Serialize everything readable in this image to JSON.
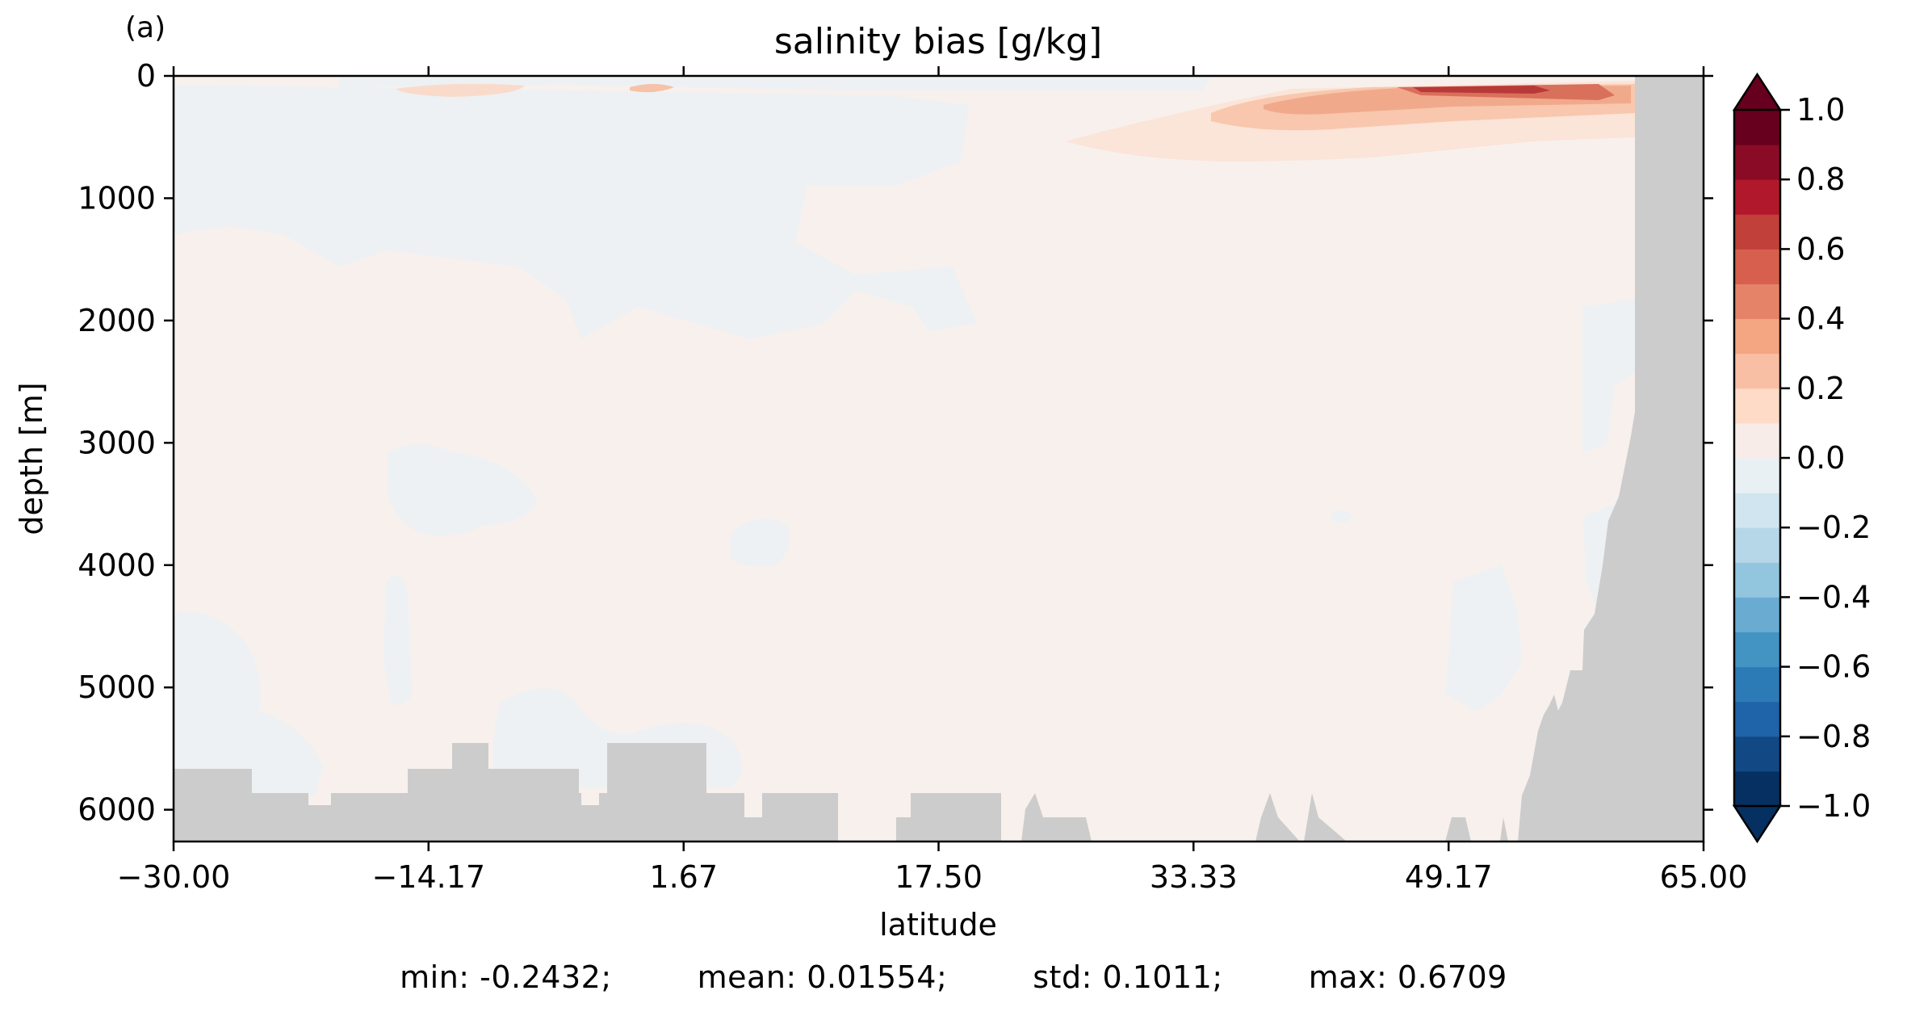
{
  "chart_data": {
    "type": "heatmap",
    "panel_label": "(a)",
    "title": "salinity bias [g/kg]",
    "xlabel": "latitude",
    "ylabel": "depth [m]",
    "xlim": [
      -30.0,
      65.0
    ],
    "ylim": [
      6260,
      0
    ],
    "y_inverted": true,
    "x_ticks": [
      -30.0,
      -14.17,
      1.67,
      17.5,
      33.33,
      49.17,
      65.0
    ],
    "x_tick_labels": [
      "−30.00",
      "−14.17",
      "1.67",
      "17.50",
      "33.33",
      "49.17",
      "65.00"
    ],
    "y_ticks": [
      0,
      1000,
      2000,
      3000,
      4000,
      5000,
      6000
    ],
    "y_tick_labels": [
      "0",
      "1000",
      "2000",
      "3000",
      "4000",
      "5000",
      "6000"
    ],
    "colormap": "RdBu_r",
    "colorbar": {
      "min": -1.0,
      "max": 1.0,
      "extend": "both",
      "ticks": [
        1.0,
        0.8,
        0.6,
        0.4,
        0.2,
        0.0,
        -0.2,
        -0.4,
        -0.6,
        -0.8,
        -1.0
      ],
      "tick_labels": [
        "1.0",
        "0.8",
        "0.6",
        "0.4",
        "0.2",
        "0.0",
        "−0.2",
        "−0.4",
        "−0.6",
        "−0.8",
        "−1.0"
      ],
      "band_colors": [
        "#053061",
        "#124984",
        "#1f63a8",
        "#2c7bb6",
        "#4393c3",
        "#6aabd2",
        "#92c5de",
        "#b6d7e8",
        "#d1e5f0",
        "#e9f0f4",
        "#f7ece7",
        "#fddbc7",
        "#f8bfa4",
        "#f4a582",
        "#e58368",
        "#d6604d",
        "#c1403a",
        "#b2182b",
        "#8a0b25",
        "#67001f"
      ],
      "under_color": "#053061",
      "over_color": "#67001f"
    },
    "field": {
      "background_bias": 0.02,
      "background_color": "#f8f0ed",
      "land_color": "#cccccc",
      "positive_max_region": "near-surface (0–400 m) between about 35 and 62 latitude",
      "negative_regions": "weak negative bias (−0.1 to 0) in upper ocean south of 20 latitude and in scattered deep patches"
    },
    "stats": {
      "min": "min: -0.2432;",
      "mean": "mean: 0.01554;",
      "std": "std: 0.1011;",
      "max": "max: 0.6709"
    }
  }
}
